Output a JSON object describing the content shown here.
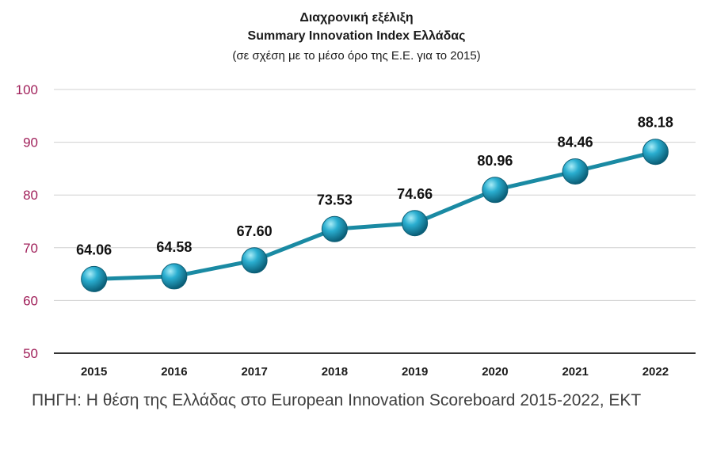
{
  "titles": {
    "line1": "Διαχρονική εξέλιξη",
    "line2": "Summary Innovation Index Ελλάδας",
    "line3": "(σε σχέση με το μέσο όρο της Ε.Ε. για το 2015)"
  },
  "source": "ΠΗΓΗ: Η θέση της Ελλάδας στο European Innovation Scoreboard 2015-2022, ΕΚΤ",
  "chart_data": {
    "type": "line",
    "categories": [
      "2015",
      "2016",
      "2017",
      "2018",
      "2019",
      "2020",
      "2021",
      "2022"
    ],
    "values": [
      64.06,
      64.58,
      67.6,
      73.53,
      74.66,
      80.96,
      84.46,
      88.18
    ],
    "data_labels": [
      "64.06",
      "64.58",
      "67.60",
      "73.53",
      "74.66",
      "80.96",
      "84.46",
      "88.18"
    ],
    "ylim": [
      50,
      100
    ],
    "yticks": [
      "50",
      "60",
      "70",
      "80",
      "90",
      "100"
    ],
    "grid": true,
    "line_color": "#1a8aa3",
    "marker_color": "#1a9bb8",
    "ytick_color": "#a0205a"
  }
}
